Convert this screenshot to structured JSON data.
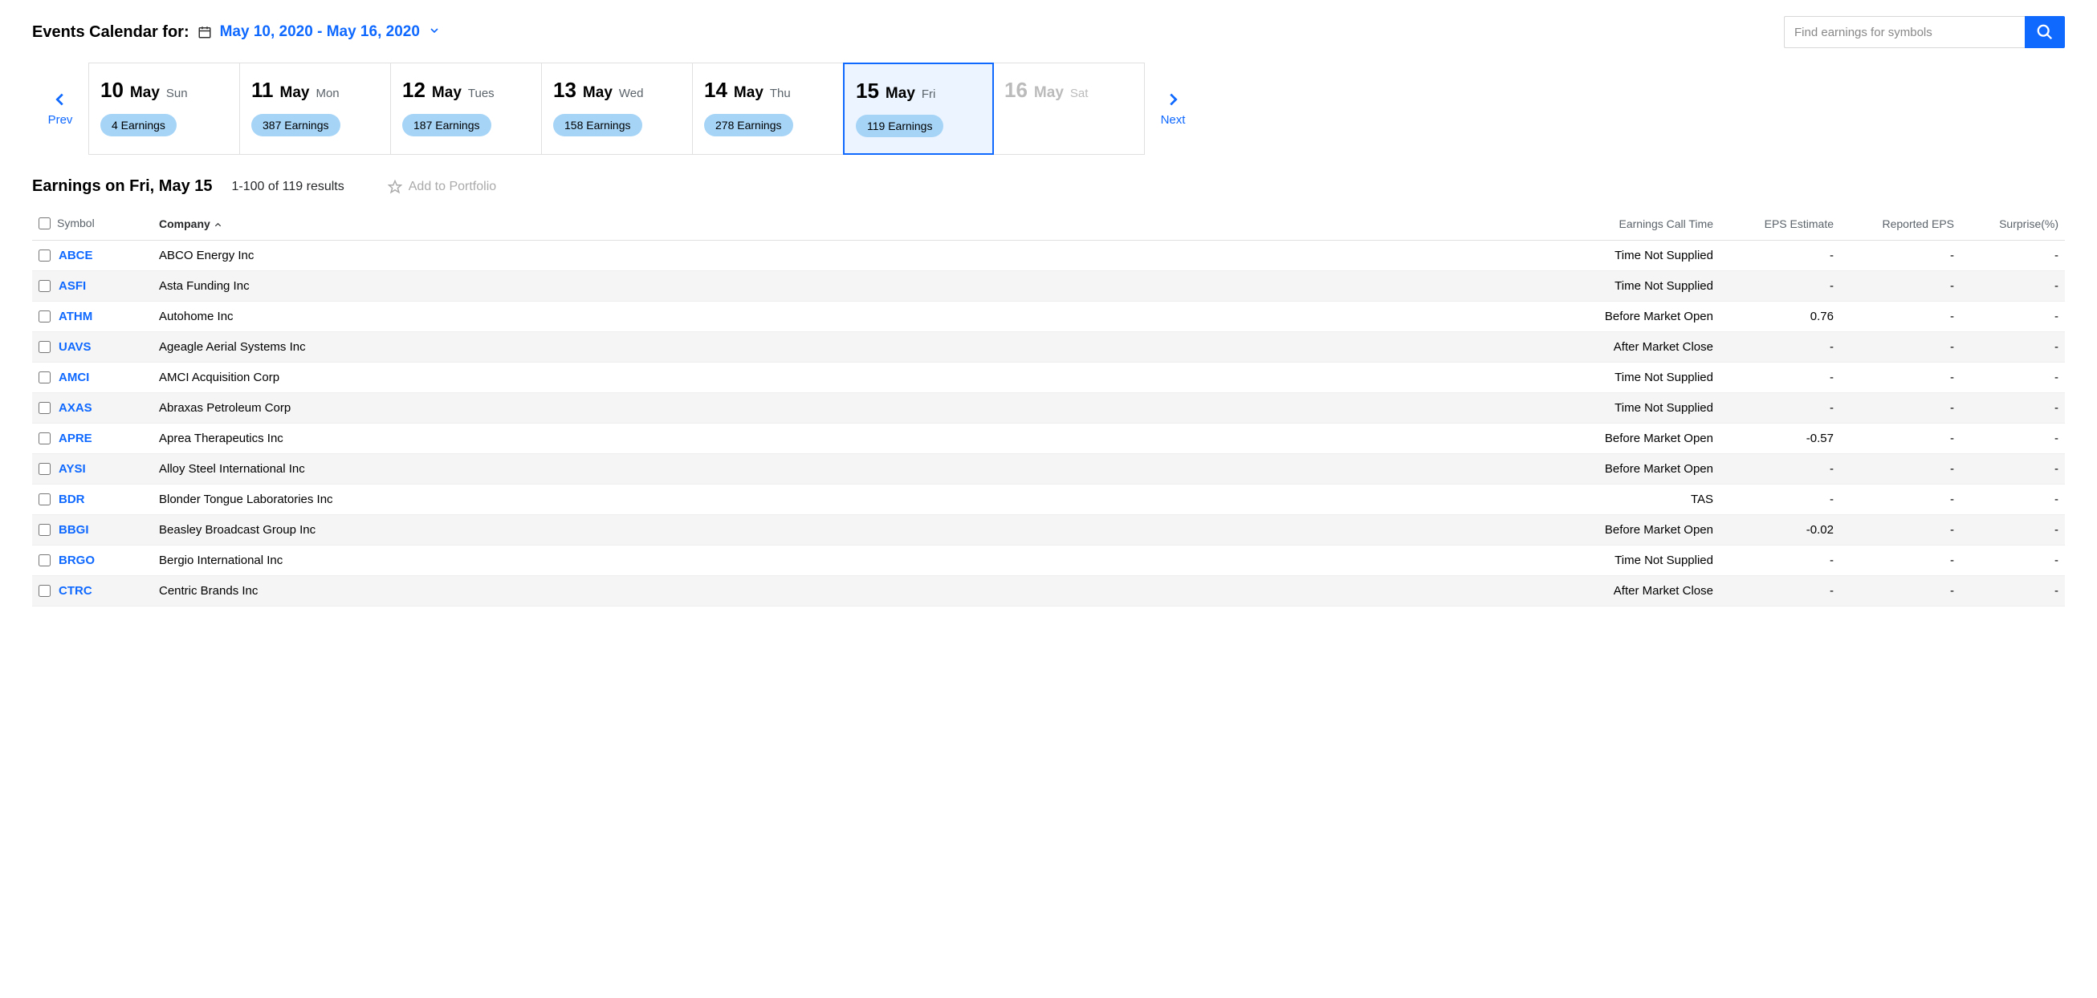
{
  "header": {
    "title": "Events Calendar for:",
    "dateRange": "May 10, 2020 - May 16, 2020"
  },
  "search": {
    "placeholder": "Find earnings for symbols"
  },
  "nav": {
    "prev": "Prev",
    "next": "Next"
  },
  "days": [
    {
      "num": "10",
      "month": "May",
      "dow": "Sun",
      "earnings": "4 Earnings",
      "state": "normal"
    },
    {
      "num": "11",
      "month": "May",
      "dow": "Mon",
      "earnings": "387 Earnings",
      "state": "normal"
    },
    {
      "num": "12",
      "month": "May",
      "dow": "Tues",
      "earnings": "187 Earnings",
      "state": "normal"
    },
    {
      "num": "13",
      "month": "May",
      "dow": "Wed",
      "earnings": "158 Earnings",
      "state": "normal"
    },
    {
      "num": "14",
      "month": "May",
      "dow": "Thu",
      "earnings": "278 Earnings",
      "state": "normal"
    },
    {
      "num": "15",
      "month": "May",
      "dow": "Fri",
      "earnings": "119 Earnings",
      "state": "selected"
    },
    {
      "num": "16",
      "month": "May",
      "dow": "Sat",
      "earnings": "",
      "state": "inactive"
    }
  ],
  "results": {
    "title": "Earnings on Fri, May 15",
    "count": "1-100 of 119 results",
    "addPortfolio": "Add to Portfolio"
  },
  "columns": {
    "symbol": "Symbol",
    "company": "Company",
    "time": "Earnings Call Time",
    "eps": "EPS Estimate",
    "reported": "Reported EPS",
    "surprise": "Surprise(%)"
  },
  "rows": [
    {
      "symbol": "ABCE",
      "company": "ABCO Energy Inc",
      "time": "Time Not Supplied",
      "eps": "-",
      "reported": "-",
      "surprise": "-"
    },
    {
      "symbol": "ASFI",
      "company": "Asta Funding Inc",
      "time": "Time Not Supplied",
      "eps": "-",
      "reported": "-",
      "surprise": "-"
    },
    {
      "symbol": "ATHM",
      "company": "Autohome Inc",
      "time": "Before Market Open",
      "eps": "0.76",
      "reported": "-",
      "surprise": "-"
    },
    {
      "symbol": "UAVS",
      "company": "Ageagle Aerial Systems Inc",
      "time": "After Market Close",
      "eps": "-",
      "reported": "-",
      "surprise": "-"
    },
    {
      "symbol": "AMCI",
      "company": "AMCI Acquisition Corp",
      "time": "Time Not Supplied",
      "eps": "-",
      "reported": "-",
      "surprise": "-"
    },
    {
      "symbol": "AXAS",
      "company": "Abraxas Petroleum Corp",
      "time": "Time Not Supplied",
      "eps": "-",
      "reported": "-",
      "surprise": "-"
    },
    {
      "symbol": "APRE",
      "company": "Aprea Therapeutics Inc",
      "time": "Before Market Open",
      "eps": "-0.57",
      "reported": "-",
      "surprise": "-"
    },
    {
      "symbol": "AYSI",
      "company": "Alloy Steel International Inc",
      "time": "Before Market Open",
      "eps": "-",
      "reported": "-",
      "surprise": "-"
    },
    {
      "symbol": "BDR",
      "company": "Blonder Tongue Laboratories Inc",
      "time": "TAS",
      "eps": "-",
      "reported": "-",
      "surprise": "-"
    },
    {
      "symbol": "BBGI",
      "company": "Beasley Broadcast Group Inc",
      "time": "Before Market Open",
      "eps": "-0.02",
      "reported": "-",
      "surprise": "-"
    },
    {
      "symbol": "BRGO",
      "company": "Bergio International Inc",
      "time": "Time Not Supplied",
      "eps": "-",
      "reported": "-",
      "surprise": "-"
    },
    {
      "symbol": "CTRC",
      "company": "Centric Brands Inc",
      "time": "After Market Close",
      "eps": "-",
      "reported": "-",
      "surprise": "-"
    }
  ]
}
